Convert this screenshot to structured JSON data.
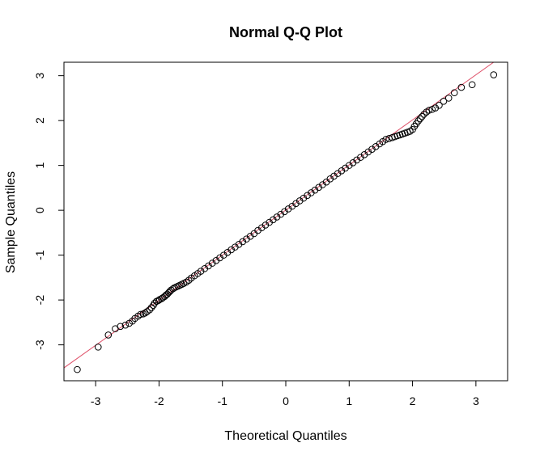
{
  "chart_data": {
    "type": "scatter",
    "title": "Normal Q-Q Plot",
    "xlabel": "Theoretical Quantiles",
    "ylabel": "Sample Quantiles",
    "xlim": [
      -3.5,
      3.5
    ],
    "ylim": [
      -3.8,
      3.3
    ],
    "x_ticks": [
      -3,
      -2,
      -1,
      0,
      1,
      2,
      3
    ],
    "y_ticks": [
      -3,
      -2,
      -1,
      0,
      1,
      2,
      3
    ],
    "x_tick_labels": [
      "-3",
      "-2",
      "-1",
      "0",
      "1",
      "2",
      "3"
    ],
    "y_tick_labels": [
      "-3",
      "-2",
      "-1",
      "0",
      "1",
      "2",
      "3"
    ],
    "grid": false,
    "legend": "none",
    "point_color": "#000000",
    "line_color": "#df536b",
    "reference_line": {
      "intercept": 0.005,
      "slope": 1.005
    },
    "points": [
      [
        -3.29,
        -3.55
      ],
      [
        -2.96,
        -3.05
      ],
      [
        -2.8,
        -2.78
      ],
      [
        -2.69,
        -2.64
      ],
      [
        -2.61,
        -2.59
      ],
      [
        -2.53,
        -2.56
      ],
      [
        -2.47,
        -2.52
      ],
      [
        -2.42,
        -2.47
      ],
      [
        -2.38,
        -2.41
      ],
      [
        -2.33,
        -2.36
      ],
      [
        -2.29,
        -2.32
      ],
      [
        -2.25,
        -2.31
      ],
      [
        -2.22,
        -2.29
      ],
      [
        -2.19,
        -2.26
      ],
      [
        -2.15,
        -2.22
      ],
      [
        -2.12,
        -2.17
      ],
      [
        -2.09,
        -2.12
      ],
      [
        -2.07,
        -2.07
      ],
      [
        -2.04,
        -2.03
      ],
      [
        -2.01,
        -2.01
      ],
      [
        -1.99,
        -1.99
      ],
      [
        -1.96,
        -1.97
      ],
      [
        -1.94,
        -1.95
      ],
      [
        -1.91,
        -1.92
      ],
      [
        -1.89,
        -1.89
      ],
      [
        -1.87,
        -1.87
      ],
      [
        -1.85,
        -1.84
      ],
      [
        -1.83,
        -1.81
      ],
      [
        -1.81,
        -1.78
      ],
      [
        -1.78,
        -1.75
      ],
      [
        -1.76,
        -1.73
      ],
      [
        -1.73,
        -1.71
      ],
      [
        -1.7,
        -1.69
      ],
      [
        -1.67,
        -1.67
      ],
      [
        -1.64,
        -1.65
      ],
      [
        -1.61,
        -1.63
      ],
      [
        -1.57,
        -1.6
      ],
      [
        -1.53,
        -1.56
      ],
      [
        -1.49,
        -1.51
      ],
      [
        -1.44,
        -1.46
      ],
      [
        -1.39,
        -1.41
      ],
      [
        -1.34,
        -1.36
      ],
      [
        -1.28,
        -1.3
      ],
      [
        -1.22,
        -1.24
      ],
      [
        -1.16,
        -1.18
      ],
      [
        -1.1,
        -1.12
      ],
      [
        -1.04,
        -1.06
      ],
      [
        -0.98,
        -1.0
      ],
      [
        -0.92,
        -0.94
      ],
      [
        -0.86,
        -0.88
      ],
      [
        -0.8,
        -0.82
      ],
      [
        -0.74,
        -0.76
      ],
      [
        -0.68,
        -0.7
      ],
      [
        -0.62,
        -0.64
      ],
      [
        -0.56,
        -0.58
      ],
      [
        -0.5,
        -0.52
      ],
      [
        -0.44,
        -0.45
      ],
      [
        -0.38,
        -0.39
      ],
      [
        -0.32,
        -0.33
      ],
      [
        -0.26,
        -0.27
      ],
      [
        -0.2,
        -0.21
      ],
      [
        -0.14,
        -0.15
      ],
      [
        -0.08,
        -0.09
      ],
      [
        -0.02,
        -0.03
      ],
      [
        0.04,
        0.03
      ],
      [
        0.1,
        0.09
      ],
      [
        0.16,
        0.15
      ],
      [
        0.22,
        0.21
      ],
      [
        0.28,
        0.27
      ],
      [
        0.34,
        0.33
      ],
      [
        0.4,
        0.39
      ],
      [
        0.46,
        0.45
      ],
      [
        0.52,
        0.51
      ],
      [
        0.58,
        0.57
      ],
      [
        0.64,
        0.63
      ],
      [
        0.7,
        0.7
      ],
      [
        0.76,
        0.76
      ],
      [
        0.82,
        0.82
      ],
      [
        0.88,
        0.88
      ],
      [
        0.94,
        0.94
      ],
      [
        1.0,
        1.0
      ],
      [
        1.06,
        1.06
      ],
      [
        1.12,
        1.12
      ],
      [
        1.18,
        1.18
      ],
      [
        1.24,
        1.24
      ],
      [
        1.3,
        1.3
      ],
      [
        1.36,
        1.36
      ],
      [
        1.42,
        1.42
      ],
      [
        1.48,
        1.48
      ],
      [
        1.53,
        1.53
      ],
      [
        1.58,
        1.58
      ],
      [
        1.63,
        1.6
      ],
      [
        1.68,
        1.62
      ],
      [
        1.72,
        1.64
      ],
      [
        1.76,
        1.66
      ],
      [
        1.8,
        1.68
      ],
      [
        1.84,
        1.7
      ],
      [
        1.88,
        1.72
      ],
      [
        1.92,
        1.74
      ],
      [
        1.96,
        1.76
      ],
      [
        2.0,
        1.8
      ],
      [
        2.03,
        1.87
      ],
      [
        2.06,
        1.93
      ],
      [
        2.09,
        1.99
      ],
      [
        2.12,
        2.04
      ],
      [
        2.15,
        2.09
      ],
      [
        2.18,
        2.14
      ],
      [
        2.22,
        2.19
      ],
      [
        2.26,
        2.23
      ],
      [
        2.31,
        2.25
      ],
      [
        2.36,
        2.28
      ],
      [
        2.42,
        2.34
      ],
      [
        2.49,
        2.43
      ],
      [
        2.57,
        2.5
      ],
      [
        2.66,
        2.62
      ],
      [
        2.77,
        2.74
      ],
      [
        2.94,
        2.8
      ],
      [
        3.28,
        3.02
      ]
    ]
  }
}
